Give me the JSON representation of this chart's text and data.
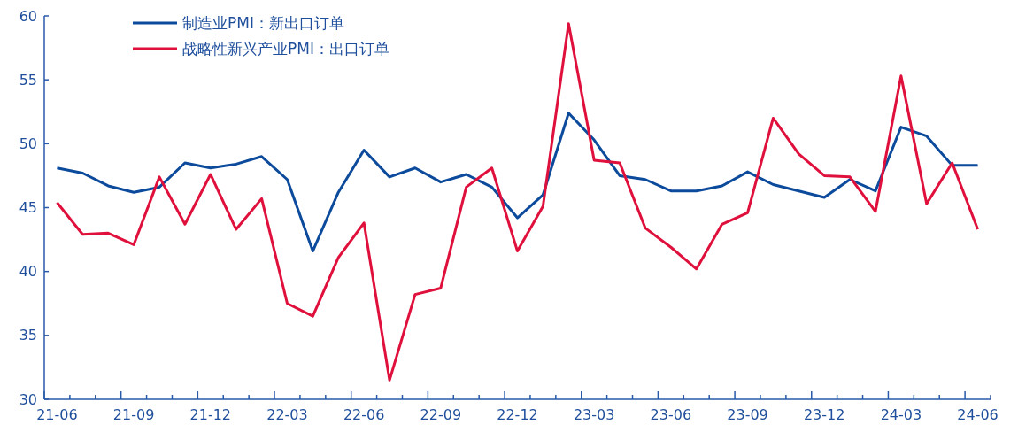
{
  "chart_data": {
    "type": "line",
    "categories": [
      "21-06",
      null,
      null,
      "21-09",
      null,
      null,
      "21-12",
      null,
      null,
      "22-03",
      null,
      null,
      "22-06",
      null,
      null,
      "22-09",
      null,
      null,
      "22-12",
      null,
      null,
      "23-03",
      null,
      null,
      "23-06",
      null,
      null,
      "23-09",
      null,
      null,
      "23-12",
      null,
      null,
      "24-03",
      null,
      null,
      "24-06"
    ],
    "series": [
      {
        "name": "制造业PMI：新出口订单",
        "color": "#0c4a9c",
        "values": [
          48.1,
          47.7,
          46.7,
          46.2,
          46.6,
          48.5,
          48.1,
          48.4,
          49.0,
          47.2,
          41.6,
          46.2,
          49.5,
          47.4,
          48.1,
          47.0,
          47.6,
          46.6,
          44.2,
          46.0,
          52.4,
          50.3,
          47.5,
          47.2,
          46.3,
          46.3,
          46.7,
          47.8,
          46.8,
          46.3,
          45.8,
          47.2,
          46.3,
          51.3,
          50.6,
          48.3,
          48.3
        ]
      },
      {
        "name": "战略性新兴产业PMI：出口订单",
        "color": "#e0103c",
        "values": [
          45.4,
          42.9,
          43.0,
          42.1,
          47.4,
          43.7,
          47.6,
          43.3,
          45.7,
          37.5,
          36.5,
          41.1,
          43.8,
          31.5,
          38.2,
          38.7,
          46.6,
          48.1,
          41.6,
          45.1,
          59.4,
          48.7,
          48.5,
          43.4,
          41.9,
          40.2,
          43.7,
          44.6,
          52.0,
          49.2,
          47.5,
          47.4,
          44.7,
          55.3,
          45.3,
          48.5,
          43.3
        ]
      }
    ],
    "ylim": [
      30,
      60
    ],
    "yticks": [
      30,
      35,
      40,
      45,
      50,
      55,
      60
    ],
    "grid": false,
    "legend": "top left",
    "marker": "none",
    "line_style": "solid"
  }
}
